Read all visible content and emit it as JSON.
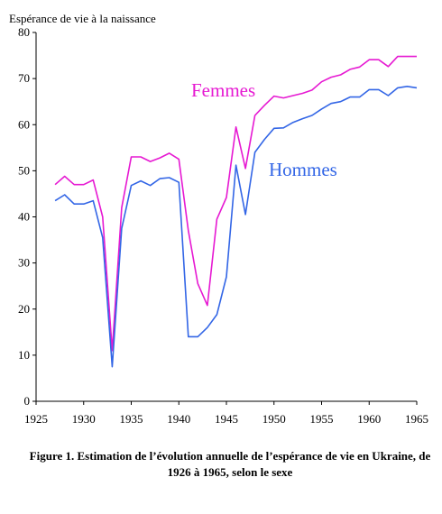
{
  "caption": "Figure 1. Estimation de l’évolution annuelle de l’espérance de vie en Ukraine, de 1926 à 1965, selon le sexe",
  "colors": {
    "femmes": "#e619d2",
    "hommes": "#3366e6",
    "axis": "#000000"
  },
  "chart_data": {
    "type": "line",
    "title": "",
    "ylabel": "Espérance de vie à la naissance",
    "xlabel": "",
    "xlim": [
      1925,
      1965
    ],
    "ylim": [
      0,
      80
    ],
    "xticks": [
      1925,
      1930,
      1935,
      1940,
      1945,
      1950,
      1955,
      1960,
      1965
    ],
    "yticks": [
      0,
      10,
      20,
      30,
      40,
      50,
      60,
      70,
      80
    ],
    "grid": false,
    "legend": "inline labels",
    "x": [
      1927,
      1928,
      1929,
      1930,
      1931,
      1932,
      1933,
      1934,
      1935,
      1936,
      1937,
      1938,
      1939,
      1940,
      1941,
      1942,
      1943,
      1944,
      1945,
      1946,
      1947,
      1948,
      1949,
      1950,
      1951,
      1952,
      1953,
      1954,
      1955,
      1956,
      1957,
      1958,
      1959,
      1960,
      1961,
      1962,
      1963,
      1964,
      1965
    ],
    "series": [
      {
        "name": "Femmes",
        "values": [
          47,
          48.8,
          47,
          47,
          48,
          40,
          11,
          42,
          53,
          53,
          52,
          52.8,
          53.8,
          52.5,
          37,
          25.5,
          20.8,
          39.5,
          44.2,
          59.5,
          50.5,
          62,
          64.2,
          66.2,
          65.8,
          66.3,
          66.8,
          67.5,
          69.3,
          70.3,
          70.8,
          72,
          72.5,
          74.1,
          74.1,
          72.6,
          74.8,
          74.8,
          74.8
        ]
      },
      {
        "name": "Hommes",
        "values": [
          43.5,
          44.8,
          42.8,
          42.8,
          43.5,
          35.5,
          7.5,
          37.5,
          46.8,
          47.8,
          46.8,
          48.3,
          48.5,
          47.5,
          14,
          14,
          16,
          18.8,
          27,
          51.2,
          40.5,
          54,
          56.8,
          59.2,
          59.3,
          60.5,
          61.3,
          62,
          63.4,
          64.6,
          65,
          66,
          66,
          67.6,
          67.6,
          66.3,
          68,
          68.3,
          68
        ]
      }
    ]
  }
}
